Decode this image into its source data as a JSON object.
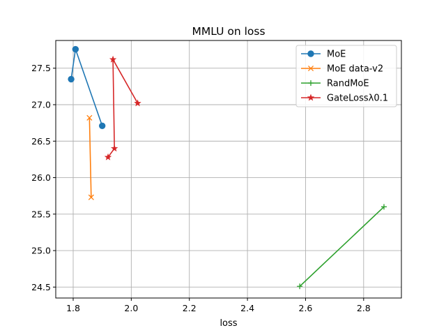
{
  "chart_data": {
    "type": "line",
    "title": "MMLU on loss",
    "xlabel": "loss",
    "ylabel": "",
    "xlim": [
      1.74,
      2.93
    ],
    "ylim": [
      24.35,
      27.88
    ],
    "xticks": [
      "1.8",
      "2.0",
      "2.2",
      "2.4",
      "2.6",
      "2.8"
    ],
    "yticks": [
      "24.5",
      "25.0",
      "25.5",
      "26.0",
      "26.5",
      "27.0",
      "27.5"
    ],
    "grid": true,
    "legend_position": "top-right",
    "series": [
      {
        "name": "MoE",
        "color": "#1f77b4",
        "marker": "circle",
        "x": [
          1.793,
          1.808,
          1.9
        ],
        "y": [
          27.35,
          27.76,
          26.71
        ]
      },
      {
        "name": "MoE data-v2",
        "color": "#ff7f0e",
        "marker": "x",
        "x": [
          1.856,
          1.862
        ],
        "y": [
          26.82,
          25.73
        ]
      },
      {
        "name": "RandMoE",
        "color": "#2ca02c",
        "marker": "plus",
        "x": [
          2.58,
          2.87
        ],
        "y": [
          24.51,
          25.6
        ]
      },
      {
        "name": "GateLossλ0.1",
        "color": "#d62728",
        "marker": "star",
        "x": [
          1.92,
          1.942,
          1.937,
          2.022
        ],
        "y": [
          26.28,
          26.4,
          27.62,
          27.02
        ]
      }
    ]
  }
}
